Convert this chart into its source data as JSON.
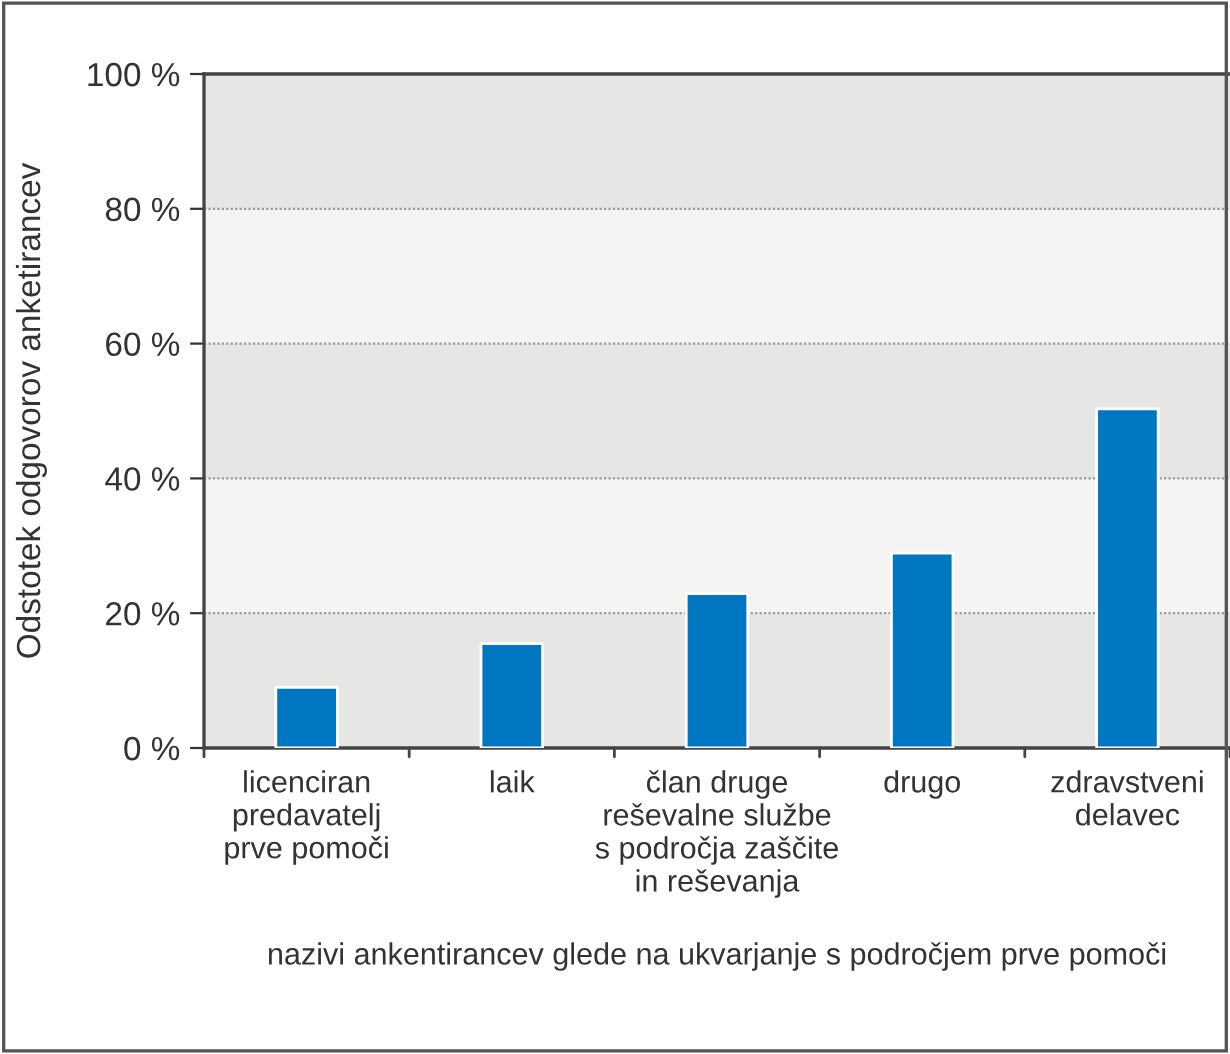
{
  "chart_data": {
    "type": "bar",
    "categories": [
      "licenciran\npredavatelj\nprve pomoči",
      "laik",
      "član druge\nreševalne službe\ns področja zaščite\nin reševanja",
      "drugo",
      "zdravstveni\ndelavec"
    ],
    "values": [
      9,
      15.5,
      22.9,
      28.9,
      50.3
    ],
    "color": "#0077c0",
    "xlabel": "nazivi ankentirancev glede na ukvarjanje s področjem prve pomoči",
    "ylabel": "Odstotek odgovorov anketirancev",
    "ylim": [
      0,
      100
    ],
    "yticks": [
      {
        "value": 0,
        "label": "0 %"
      },
      {
        "value": 20,
        "label": "20 %"
      },
      {
        "value": 40,
        "label": "40 %"
      },
      {
        "value": 60,
        "label": "60 %"
      },
      {
        "value": 80,
        "label": "80 %"
      },
      {
        "value": 100,
        "label": "100 %"
      }
    ],
    "grid": "y",
    "bands": [
      {
        "axis": "y",
        "from": 0,
        "to": 20,
        "color": "#e6e6e5"
      },
      {
        "axis": "y",
        "from": 20,
        "to": 40,
        "color": "#f4f4f3"
      },
      {
        "axis": "y",
        "from": 40,
        "to": 60,
        "color": "#e6e6e5"
      },
      {
        "axis": "y",
        "from": 60,
        "to": 80,
        "color": "#f4f4f3"
      },
      {
        "axis": "y",
        "from": 80,
        "to": 100,
        "color": "#e6e6e5"
      }
    ]
  }
}
